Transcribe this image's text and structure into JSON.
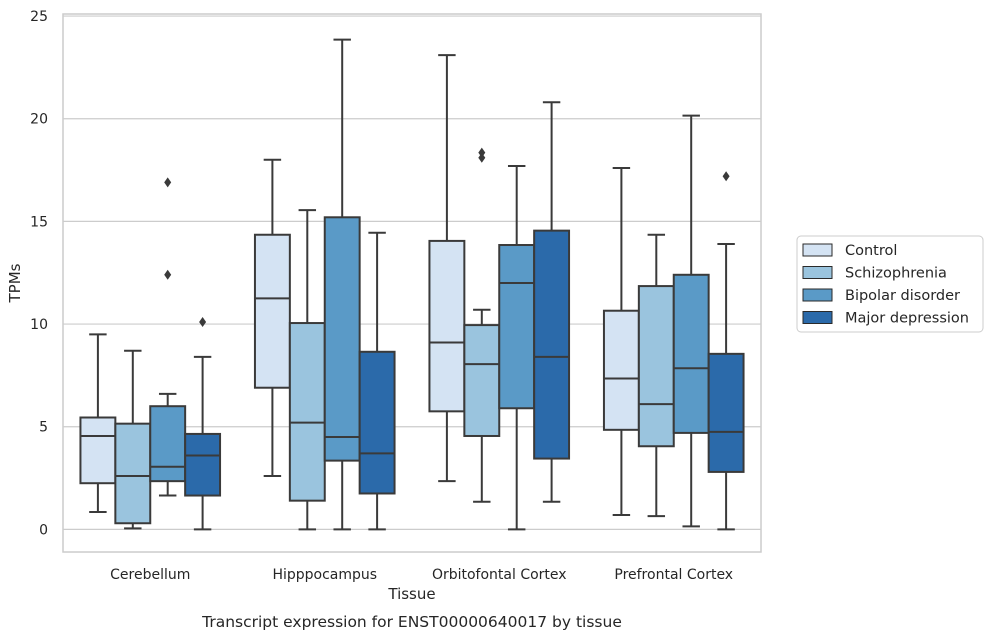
{
  "chart_data": {
    "type": "box",
    "title": "",
    "caption": "Transcript expression for ENST00000640017 by tissue",
    "xlabel": "Tissue",
    "ylabel": "TPMs",
    "ylim": [
      -1.1,
      25.1
    ],
    "yticks": [
      0,
      5,
      10,
      15,
      20,
      25
    ],
    "grid": "horizontal",
    "legend_position": "right",
    "categories": [
      "Cerebellum",
      "Hipppocampus",
      "Orbitofontal Cortex",
      "Prefrontal Cortex"
    ],
    "series": [
      {
        "name": "Control",
        "color": "#d4e3f3",
        "boxes": [
          {
            "whisker_low": 0.85,
            "q1": 2.25,
            "median": 4.55,
            "q3": 5.45,
            "whisker_high": 9.5,
            "outliers": []
          },
          {
            "whisker_low": 2.6,
            "q1": 6.9,
            "median": 11.25,
            "q3": 14.35,
            "whisker_high": 18.0,
            "outliers": []
          },
          {
            "whisker_low": 2.35,
            "q1": 5.75,
            "median": 9.1,
            "q3": 14.05,
            "whisker_high": 23.1,
            "outliers": []
          },
          {
            "whisker_low": 0.7,
            "q1": 4.85,
            "median": 7.35,
            "q3": 10.65,
            "whisker_high": 17.6,
            "outliers": []
          }
        ]
      },
      {
        "name": "Schizophrenia",
        "color": "#9ac4de",
        "boxes": [
          {
            "whisker_low": 0.05,
            "q1": 0.3,
            "median": 2.6,
            "q3": 5.15,
            "whisker_high": 8.7,
            "outliers": []
          },
          {
            "whisker_low": 0.0,
            "q1": 1.4,
            "median": 5.2,
            "q3": 10.05,
            "whisker_high": 15.55,
            "outliers": []
          },
          {
            "whisker_low": 1.35,
            "q1": 4.55,
            "median": 8.05,
            "q3": 9.95,
            "whisker_high": 10.7,
            "outliers": [
              18.1,
              18.35
            ]
          },
          {
            "whisker_low": 0.65,
            "q1": 4.05,
            "median": 6.1,
            "q3": 11.85,
            "whisker_high": 14.35,
            "outliers": []
          }
        ]
      },
      {
        "name": "Bipolar disorder",
        "color": "#5a9ac7",
        "boxes": [
          {
            "whisker_low": 1.65,
            "q1": 2.35,
            "median": 3.05,
            "q3": 6.0,
            "whisker_high": 6.6,
            "outliers": [
              12.4,
              16.9
            ]
          },
          {
            "whisker_low": 0.0,
            "q1": 3.35,
            "median": 4.5,
            "q3": 15.2,
            "whisker_high": 23.85,
            "outliers": []
          },
          {
            "whisker_low": 0.0,
            "q1": 5.9,
            "median": 12.0,
            "q3": 13.85,
            "whisker_high": 17.7,
            "outliers": []
          },
          {
            "whisker_low": 0.15,
            "q1": 4.7,
            "median": 7.85,
            "q3": 12.4,
            "whisker_high": 20.15,
            "outliers": []
          }
        ]
      },
      {
        "name": "Major depression",
        "color": "#2b6aaa",
        "boxes": [
          {
            "whisker_low": 0.0,
            "q1": 1.65,
            "median": 3.6,
            "q3": 4.65,
            "whisker_high": 8.4,
            "outliers": [
              10.1
            ]
          },
          {
            "whisker_low": 0.0,
            "q1": 1.75,
            "median": 3.7,
            "q3": 8.65,
            "whisker_high": 14.45,
            "outliers": []
          },
          {
            "whisker_low": 1.35,
            "q1": 3.45,
            "median": 8.4,
            "q3": 14.55,
            "whisker_high": 20.8,
            "outliers": []
          },
          {
            "whisker_low": 0.0,
            "q1": 2.8,
            "median": 4.75,
            "q3": 8.55,
            "whisker_high": 13.9,
            "outliers": [
              17.2
            ]
          }
        ]
      }
    ]
  }
}
